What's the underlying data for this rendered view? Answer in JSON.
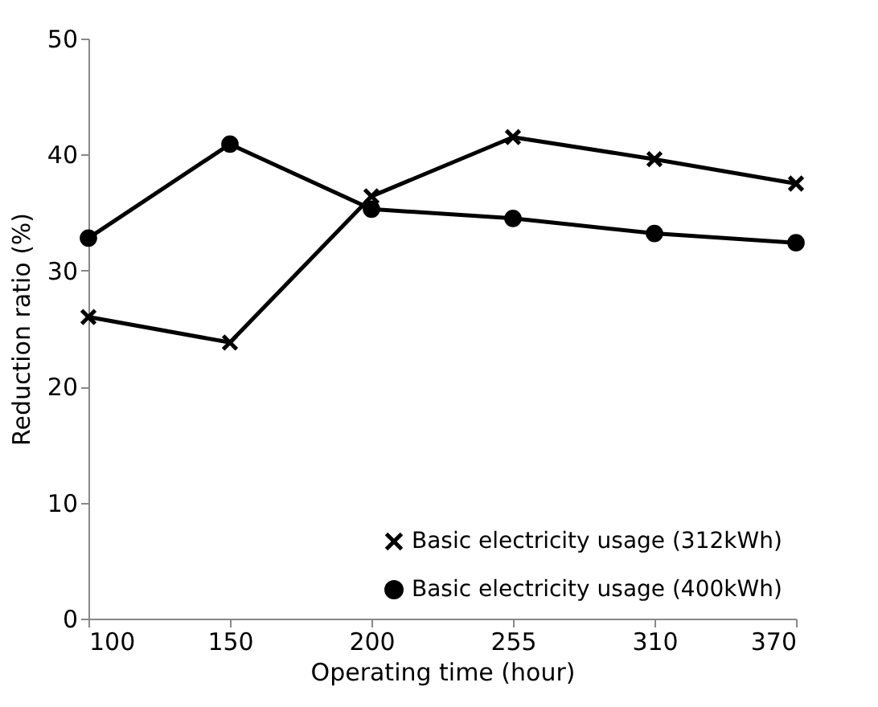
{
  "chart_data": {
    "type": "line",
    "xlabel": "Operating time (hour)",
    "ylabel": "Reduction ratio (%)",
    "categories": [
      "100",
      "150",
      "200",
      "255",
      "310",
      "370"
    ],
    "ylim": [
      0,
      50
    ],
    "yticks": [
      0,
      10,
      20,
      30,
      40,
      50
    ],
    "grid": false,
    "legend": "bottom right",
    "line_style": "solid",
    "series": [
      {
        "name": "Basic electricity usage (312kWh)",
        "color": "#000000",
        "marker": "cross",
        "values": [
          26.0,
          23.8,
          36.4,
          41.5,
          39.6,
          37.5
        ]
      },
      {
        "name": "Basic electricity usage (400kWh)",
        "color": "#000000",
        "marker": "circle",
        "values": [
          32.8,
          40.9,
          35.3,
          34.5,
          33.2,
          32.4
        ]
      }
    ]
  }
}
